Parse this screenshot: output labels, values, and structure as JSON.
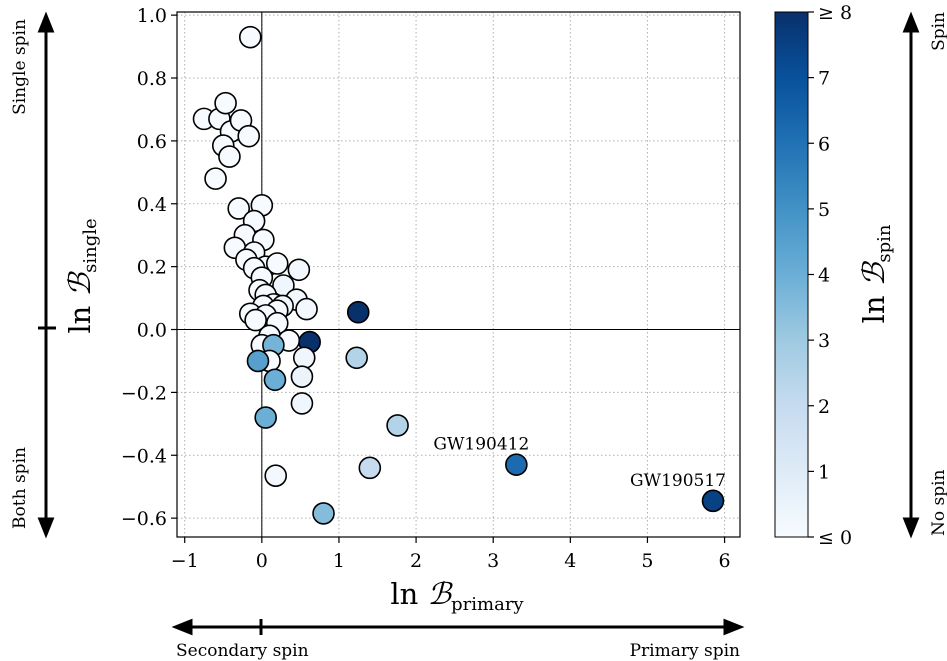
{
  "chart_data": {
    "type": "scatter",
    "xlabel": "ln ℬ_primary",
    "ylabel": "ln ℬ_single",
    "xlim": [
      -1.1,
      6.2
    ],
    "ylim": [
      -0.66,
      1.01
    ],
    "xticks": [
      -1,
      0,
      1,
      2,
      3,
      4,
      5,
      6
    ],
    "xtick_labels": [
      "−1",
      "0",
      "1",
      "2",
      "3",
      "4",
      "5",
      "6"
    ],
    "yticks": [
      1.0,
      0.8,
      0.6,
      0.4,
      0.2,
      0.0,
      -0.2,
      -0.4,
      -0.6
    ],
    "ytick_labels": [
      "1.0",
      "0.8",
      "0.6",
      "0.4",
      "0.2",
      "0.0",
      "−0.2",
      "−0.4",
      "−0.6"
    ],
    "grid": true,
    "colorbar": {
      "label": "ln ℬ_spin",
      "range": [
        0,
        8
      ],
      "ticks": [
        0,
        1,
        2,
        3,
        4,
        5,
        6,
        7,
        8
      ],
      "tick_labels": [
        "≤ 0",
        "1",
        "2",
        "3",
        "4",
        "5",
        "6",
        "7",
        "≥ 8"
      ],
      "colormap": "Blues"
    },
    "points": [
      {
        "x": -0.15,
        "y": 0.93,
        "c": 0.0
      },
      {
        "x": -0.75,
        "y": 0.67,
        "c": 0.0
      },
      {
        "x": -0.55,
        "y": 0.67,
        "c": 0.0
      },
      {
        "x": -0.47,
        "y": 0.72,
        "c": 0.0
      },
      {
        "x": -0.4,
        "y": 0.63,
        "c": 0.0
      },
      {
        "x": -0.27,
        "y": 0.665,
        "c": 0.0
      },
      {
        "x": -0.17,
        "y": 0.615,
        "c": 0.0
      },
      {
        "x": -0.5,
        "y": 0.585,
        "c": 0.0
      },
      {
        "x": -0.42,
        "y": 0.55,
        "c": 0.0
      },
      {
        "x": -0.6,
        "y": 0.48,
        "c": 0.0
      },
      {
        "x": 0.0,
        "y": 0.395,
        "c": 0.0
      },
      {
        "x": -0.3,
        "y": 0.385,
        "c": 0.0
      },
      {
        "x": -0.1,
        "y": 0.345,
        "c": 0.0
      },
      {
        "x": -0.22,
        "y": 0.3,
        "c": 0.0
      },
      {
        "x": 0.02,
        "y": 0.285,
        "c": 0.0
      },
      {
        "x": -0.35,
        "y": 0.26,
        "c": 0.0
      },
      {
        "x": -0.1,
        "y": 0.245,
        "c": 0.0
      },
      {
        "x": -0.2,
        "y": 0.222,
        "c": 0.0
      },
      {
        "x": 0.05,
        "y": 0.2,
        "c": 0.0
      },
      {
        "x": 0.2,
        "y": 0.21,
        "c": 0.0
      },
      {
        "x": -0.1,
        "y": 0.195,
        "c": 0.0
      },
      {
        "x": 0.48,
        "y": 0.19,
        "c": 0.2
      },
      {
        "x": 0.0,
        "y": 0.165,
        "c": 0.0
      },
      {
        "x": 0.28,
        "y": 0.14,
        "c": 0.3
      },
      {
        "x": -0.03,
        "y": 0.125,
        "c": 0.0
      },
      {
        "x": 0.05,
        "y": 0.11,
        "c": 0.0
      },
      {
        "x": 0.45,
        "y": 0.095,
        "c": 0.2
      },
      {
        "x": 0.15,
        "y": 0.08,
        "c": 0.0
      },
      {
        "x": 0.02,
        "y": 0.075,
        "c": 0.0
      },
      {
        "x": 0.27,
        "y": 0.075,
        "c": 0.3
      },
      {
        "x": 0.58,
        "y": 0.065,
        "c": 0.2
      },
      {
        "x": 0.2,
        "y": 0.06,
        "c": 0.0
      },
      {
        "x": -0.15,
        "y": 0.05,
        "c": 0.0
      },
      {
        "x": 0.05,
        "y": 0.045,
        "c": 0.0
      },
      {
        "x": -0.08,
        "y": 0.03,
        "c": 0.0
      },
      {
        "x": 0.2,
        "y": 0.02,
        "c": 0.0
      },
      {
        "x": 0.1,
        "y": -0.02,
        "c": 0.0
      },
      {
        "x": 0.35,
        "y": -0.035,
        "c": 0.0
      },
      {
        "x": 0.62,
        "y": -0.04,
        "c": 8.0
      },
      {
        "x": 0.0,
        "y": -0.05,
        "c": 0.0
      },
      {
        "x": 0.15,
        "y": -0.05,
        "c": 3.8
      },
      {
        "x": 0.55,
        "y": -0.09,
        "c": 0.3
      },
      {
        "x": 0.1,
        "y": -0.1,
        "c": 0.0
      },
      {
        "x": -0.05,
        "y": -0.1,
        "c": 4.5
      },
      {
        "x": 0.52,
        "y": -0.15,
        "c": 0.5
      },
      {
        "x": 0.17,
        "y": -0.16,
        "c": 4.0
      },
      {
        "x": 0.52,
        "y": -0.235,
        "c": 0.3
      },
      {
        "x": 0.05,
        "y": -0.28,
        "c": 4.0
      },
      {
        "x": 0.18,
        "y": -0.465,
        "c": 0.2
      },
      {
        "x": 0.8,
        "y": -0.585,
        "c": 3.5
      },
      {
        "x": 1.25,
        "y": 0.055,
        "c": 8.0
      },
      {
        "x": 1.23,
        "y": -0.09,
        "c": 2.5
      },
      {
        "x": 1.76,
        "y": -0.305,
        "c": 2.5
      },
      {
        "x": 1.4,
        "y": -0.44,
        "c": 2.0
      },
      {
        "x": 3.3,
        "y": -0.43,
        "c": 6.2
      },
      {
        "x": 5.85,
        "y": -0.545,
        "c": 7.5
      }
    ],
    "annotations": [
      {
        "text": "GW190412",
        "x": 3.3,
        "y": -0.43
      },
      {
        "text": "GW190517",
        "x": 5.85,
        "y": -0.545
      }
    ]
  },
  "sides": {
    "left_top": "Single spin",
    "left_bottom": "Both spin",
    "right_top": "Spin",
    "right_bottom": "No spin",
    "bottom_left": "Secondary spin",
    "bottom_right": "Primary spin"
  }
}
